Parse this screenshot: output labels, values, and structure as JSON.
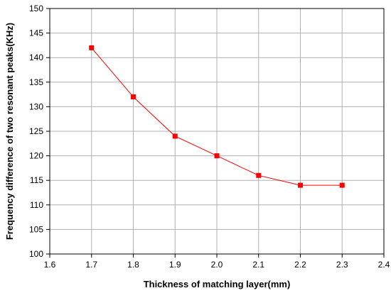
{
  "chart_data": {
    "type": "line",
    "title": "",
    "xlabel": "Thickness of matching layer(mm)",
    "ylabel": "Frequency difference of two resonant peaks(KHz)",
    "xlim": [
      1.6,
      2.4
    ],
    "ylim": [
      100,
      150
    ],
    "xticks": [
      "1.6",
      "1.7",
      "1.8",
      "1.9",
      "2.0",
      "2.1",
      "2.2",
      "2.3",
      "2.4"
    ],
    "yticks": [
      "100",
      "105",
      "110",
      "115",
      "120",
      "125",
      "130",
      "135",
      "140",
      "145",
      "150"
    ],
    "grid": true,
    "legend": "none",
    "series": [
      {
        "color": "#ff0000",
        "marker": "square",
        "x": [
          1.7,
          1.8,
          1.9,
          2.0,
          2.1,
          2.2,
          2.3
        ],
        "y": [
          142,
          132,
          124,
          120,
          116,
          114,
          114
        ]
      }
    ]
  }
}
